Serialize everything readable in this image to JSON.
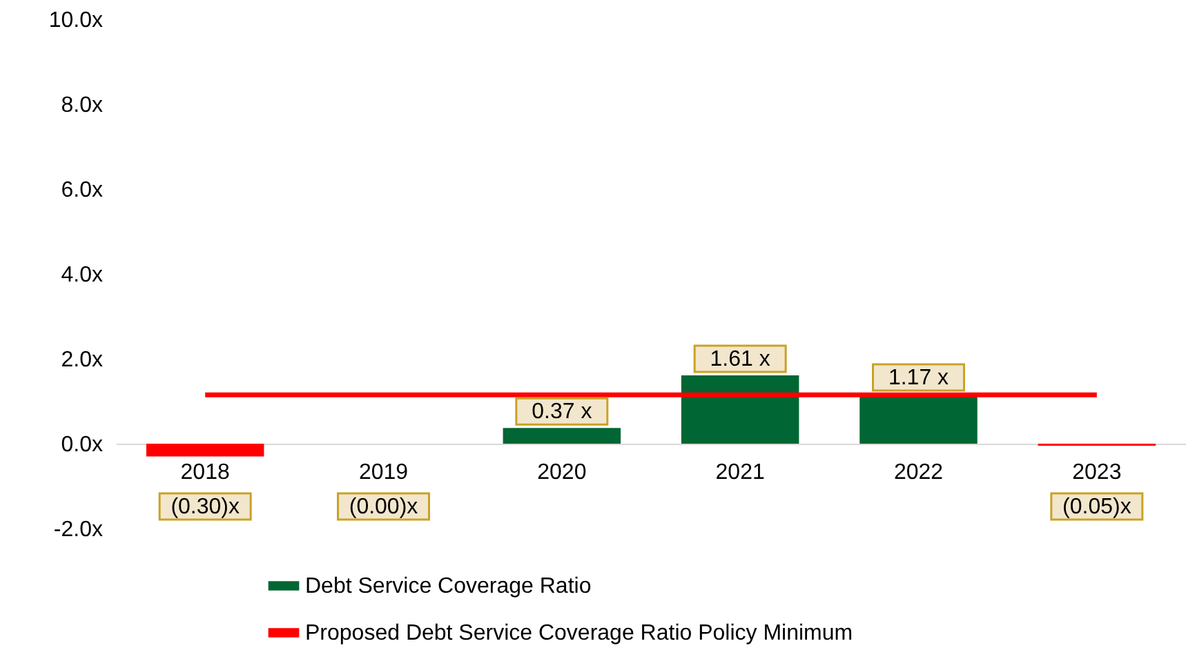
{
  "chart_data": {
    "type": "bar",
    "categories": [
      "2018",
      "2019",
      "2020",
      "2021",
      "2022",
      "2023"
    ],
    "series": [
      {
        "name": "Debt Service Coverage Ratio",
        "color": "#006633",
        "colors": [
          "#ff0000",
          "#ff0000",
          "#006633",
          "#006633",
          "#006633",
          "#ff0000"
        ],
        "values": [
          -0.3,
          0.0,
          0.37,
          1.61,
          1.17,
          -0.05
        ],
        "value_labels": [
          "(0.30)x",
          "(0.00)x",
          "0.37 x",
          "1.61 x",
          "1.17 x",
          "(0.05)x"
        ]
      },
      {
        "name": "Proposed Debt Service Coverage Ratio Policy Minimum",
        "type": "line",
        "color": "#ff0000",
        "values": [
          1.15,
          1.15,
          1.15,
          1.15,
          1.15,
          1.15
        ]
      }
    ],
    "ylim": [
      -2,
      10
    ],
    "yticks": [
      {
        "value": -2,
        "label": "-2.0x"
      },
      {
        "value": 0,
        "label": "0.0x"
      },
      {
        "value": 2,
        "label": "2.0x"
      },
      {
        "value": 4,
        "label": "4.0x"
      },
      {
        "value": 6,
        "label": "6.0x"
      },
      {
        "value": 8,
        "label": "8.0x"
      },
      {
        "value": 10,
        "label": "10.0x"
      }
    ],
    "legend": "bottom"
  }
}
